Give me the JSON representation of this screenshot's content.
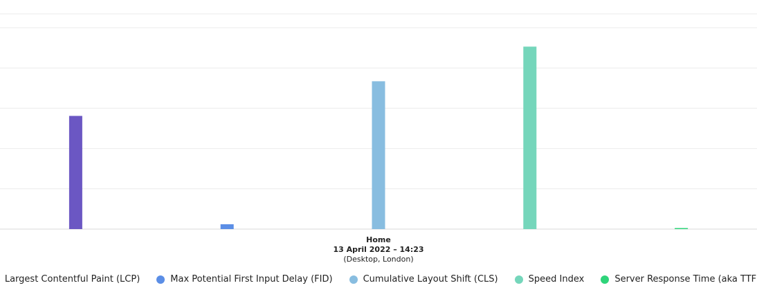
{
  "chart_data": {
    "type": "bar",
    "categories": [
      "Home"
    ],
    "category_lines": [
      "Home",
      "13 April 2022 – 14:23",
      "(Desktop, London)"
    ],
    "series": [
      {
        "name": "Largest Contentful Paint (LCP)",
        "color": "#6b57c3",
        "values": [
          2.81
        ]
      },
      {
        "name": "Max Potential First Input Delay (FID)",
        "color": "#5b8ee6",
        "values": [
          0.12
        ]
      },
      {
        "name": "Cumulative Layout Shift (CLS)",
        "color": "#88bde0",
        "values": [
          3.67
        ]
      },
      {
        "name": "Speed Index",
        "color": "#75d6bb",
        "values": [
          4.53
        ]
      },
      {
        "name": "Server Response Time (aka TTFB)",
        "color": "#2ed47a",
        "values": [
          0.02
        ]
      }
    ],
    "ylim": [
      0,
      5
    ],
    "grid": true,
    "legend": "bottom"
  }
}
